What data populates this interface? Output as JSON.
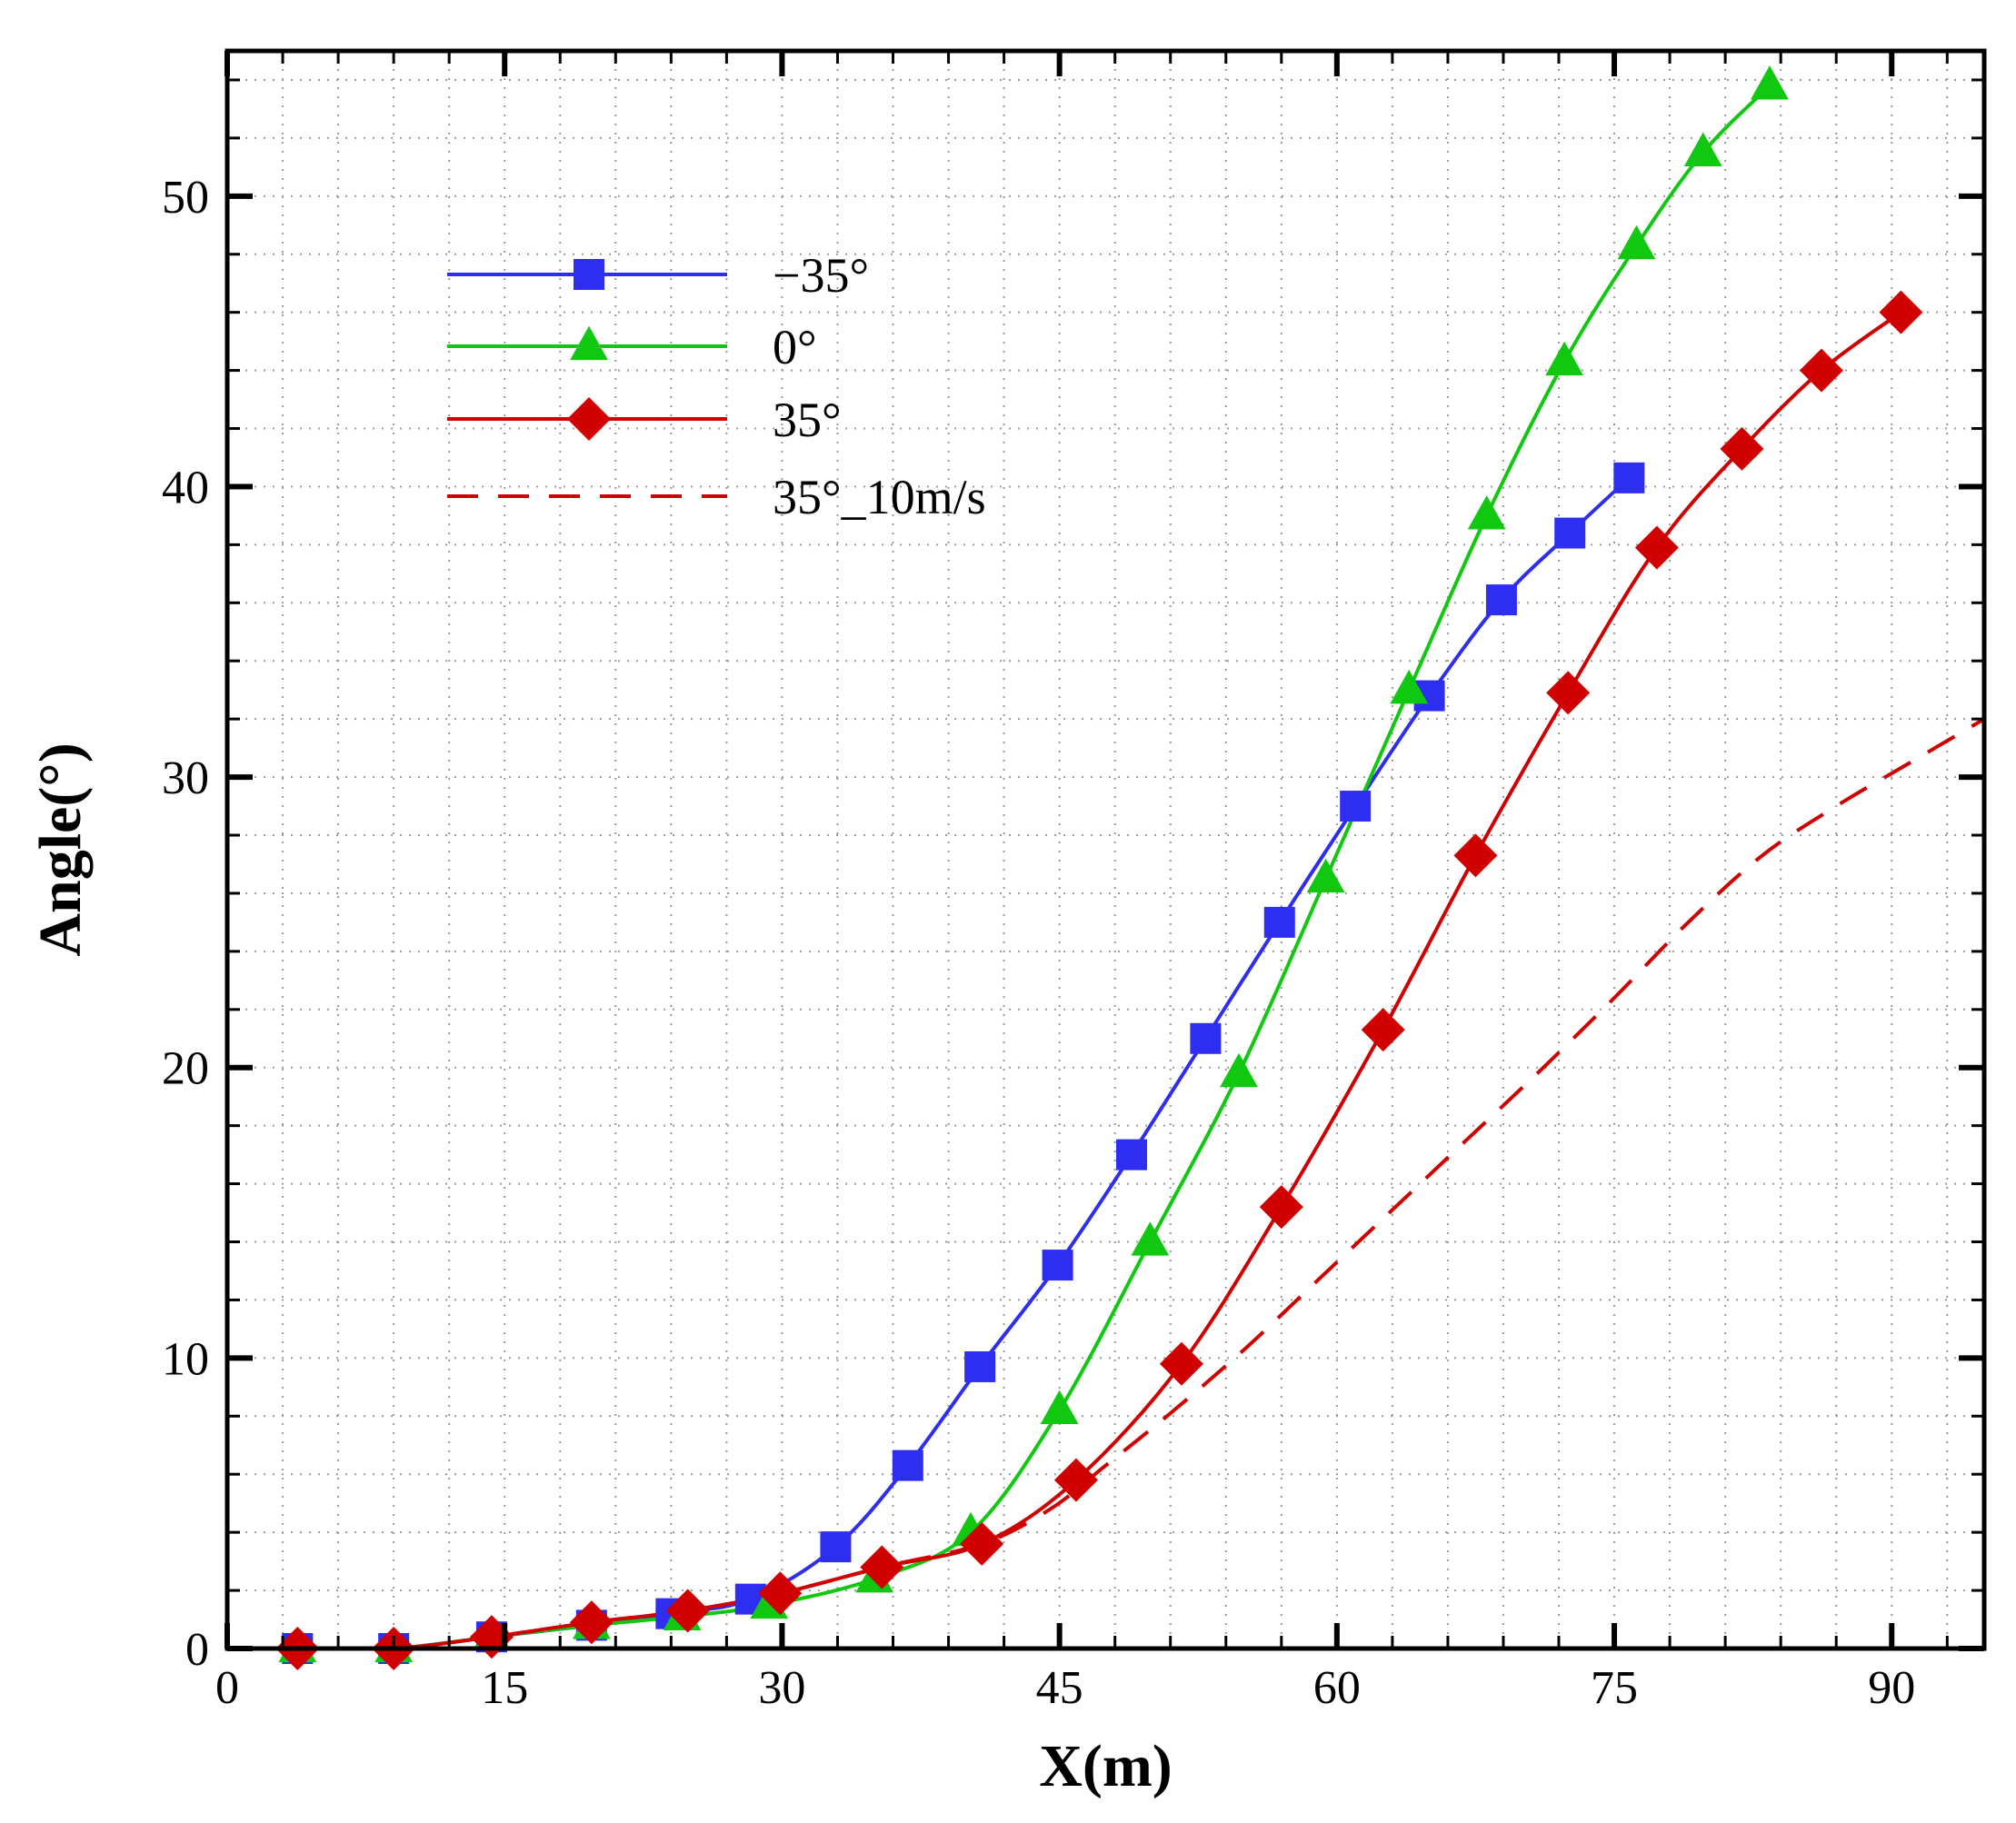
{
  "chart_data": {
    "type": "line",
    "title": "",
    "xlabel": "X(m)",
    "ylabel": "Angle(°)",
    "xlim": [
      0,
      95
    ],
    "ylim": [
      0,
      55
    ],
    "x_ticks": [
      0,
      15,
      30,
      45,
      60,
      75,
      90
    ],
    "y_ticks": [
      0,
      10,
      20,
      30,
      40,
      50
    ],
    "x_minor_step": 3,
    "y_minor_step": 2,
    "grid": true,
    "legend_position": "top-left",
    "series": [
      {
        "name": "−35°",
        "color": "#2e2ef0",
        "marker": "square",
        "line_style": "solid",
        "x": [
          3.8,
          9.0,
          14.3,
          19.7,
          24.0,
          28.3,
          32.9,
          36.8,
          40.7,
          44.9,
          48.9,
          52.9,
          56.9,
          61.0,
          65.0,
          68.9,
          72.6,
          75.8
        ],
        "y": [
          0.0,
          0.0,
          0.4,
          0.8,
          1.2,
          1.7,
          3.5,
          6.3,
          9.7,
          13.2,
          17.0,
          21.0,
          25.0,
          29.0,
          32.8,
          36.1,
          38.4,
          40.3
        ]
      },
      {
        "name": "0°",
        "color": "#10c810",
        "marker": "triangle",
        "line_style": "solid",
        "x": [
          3.8,
          9.0,
          14.3,
          19.7,
          24.6,
          29.3,
          35.0,
          40.2,
          45.0,
          49.9,
          54.7,
          59.4,
          63.9,
          68.1,
          72.3,
          76.2,
          79.8,
          83.4
        ],
        "y": [
          0.0,
          0.0,
          0.4,
          0.8,
          1.1,
          1.5,
          2.4,
          4.0,
          8.2,
          14.0,
          19.8,
          26.5,
          33.0,
          39.0,
          44.3,
          48.3,
          51.5,
          53.8
        ]
      },
      {
        "name": "35°",
        "color": "#d00000",
        "marker": "diamond",
        "line_style": "solid",
        "x": [
          3.8,
          9.0,
          14.3,
          19.7,
          24.9,
          29.9,
          35.4,
          40.8,
          45.9,
          51.6,
          57.0,
          62.5,
          67.5,
          72.5,
          77.3,
          81.9,
          86.2,
          90.5
        ],
        "y": [
          0.0,
          0.0,
          0.4,
          0.9,
          1.3,
          1.9,
          2.8,
          3.6,
          5.8,
          9.8,
          15.2,
          21.3,
          27.3,
          32.9,
          37.9,
          41.3,
          44.0,
          46.0
        ]
      },
      {
        "name": "35°_10m/s",
        "color": "#d00000",
        "marker": "none",
        "line_style": "dashed",
        "x": [
          3.8,
          9.0,
          14.3,
          19.7,
          24.9,
          29.9,
          35.4,
          40.8,
          44.5,
          47.5,
          51.0,
          55.0,
          59.0,
          63.0,
          67.0,
          71.0,
          75.0,
          79.0,
          83.0,
          87.0,
          91.0,
          95.0
        ],
        "y": [
          0.0,
          0.0,
          0.4,
          0.9,
          1.3,
          1.9,
          2.8,
          3.6,
          4.8,
          6.3,
          8.1,
          10.3,
          12.7,
          15.1,
          17.5,
          19.9,
          22.4,
          25.0,
          27.3,
          29.0,
          30.5,
          32.0
        ]
      }
    ]
  }
}
